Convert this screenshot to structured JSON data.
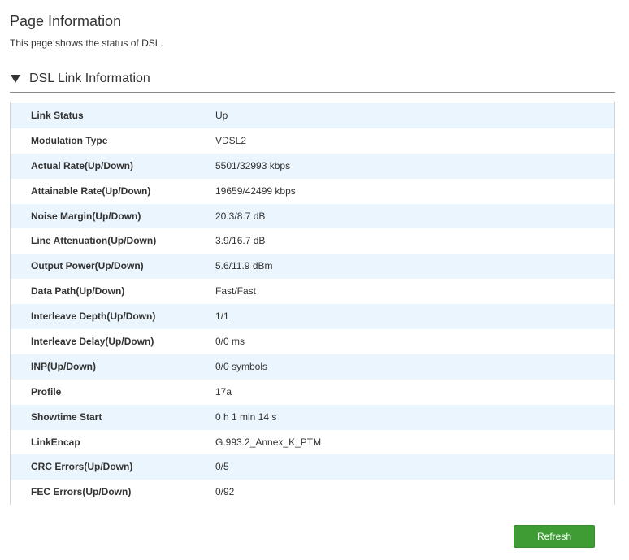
{
  "page": {
    "title": "Page Information",
    "description": "This page shows the status of DSL."
  },
  "section": {
    "title": "DSL Link Information",
    "expanded": true
  },
  "rows": [
    {
      "label": "Link Status",
      "value": "Up"
    },
    {
      "label": "Modulation Type",
      "value": "VDSL2"
    },
    {
      "label": "Actual Rate(Up/Down)",
      "value": "5501/32993 kbps"
    },
    {
      "label": "Attainable Rate(Up/Down)",
      "value": "19659/42499 kbps"
    },
    {
      "label": "Noise Margin(Up/Down)",
      "value": "20.3/8.7 dB"
    },
    {
      "label": "Line Attenuation(Up/Down)",
      "value": "3.9/16.7 dB"
    },
    {
      "label": "Output Power(Up/Down)",
      "value": "5.6/11.9 dBm"
    },
    {
      "label": "Data Path(Up/Down)",
      "value": "Fast/Fast"
    },
    {
      "label": "Interleave Depth(Up/Down)",
      "value": "1/1"
    },
    {
      "label": "Interleave Delay(Up/Down)",
      "value": "0/0 ms"
    },
    {
      "label": "INP(Up/Down)",
      "value": "0/0 symbols"
    },
    {
      "label": "Profile",
      "value": "17a"
    },
    {
      "label": "Showtime Start",
      "value": "0 h 1 min 14 s"
    },
    {
      "label": "LinkEncap",
      "value": "G.993.2_Annex_K_PTM"
    },
    {
      "label": "CRC Errors(Up/Down)",
      "value": "0/5"
    },
    {
      "label": "FEC Errors(Up/Down)",
      "value": "0/92"
    }
  ],
  "actions": {
    "refresh_label": "Refresh"
  },
  "colors": {
    "row_alt": "#eaf5fd",
    "button_green": "#3f9c35",
    "text": "#333333"
  },
  "icons": {
    "section_toggle": "triangle-down-icon"
  }
}
